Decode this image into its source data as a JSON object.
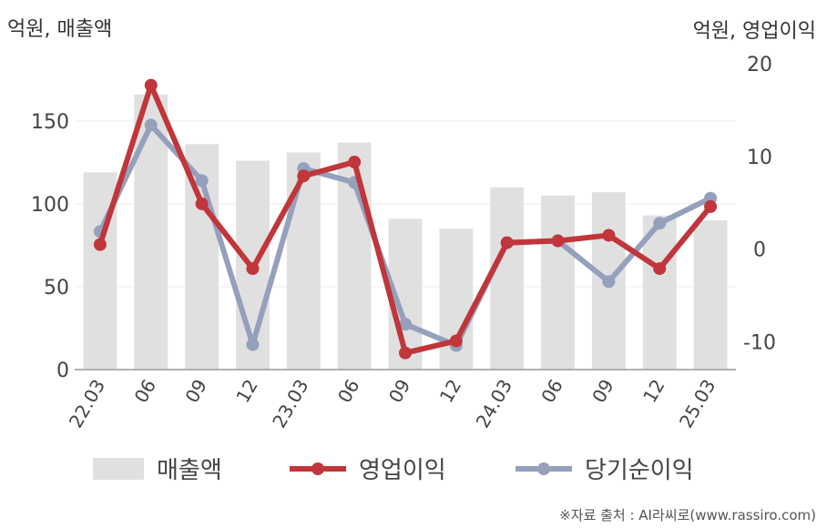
{
  "unit_left": "억원, 매출액",
  "unit_right": "억원, 영업이익",
  "source": "※자료 출처 : AI라씨로(www.rassiro.com)",
  "colors": {
    "bar": "#e0e0e0",
    "operating": "#c0363a",
    "net": "#94a0bc",
    "axis": "#999999",
    "grid": "#ececec"
  },
  "chart_data": {
    "type": "bar+line",
    "categories": [
      "22.03",
      "06",
      "09",
      "12",
      "23.03",
      "06",
      "09",
      "12",
      "24.03",
      "06",
      "09",
      "12",
      "25.03"
    ],
    "y_left": {
      "label": "억원, 매출액",
      "ylim": [
        0,
        190
      ],
      "ticks": [
        0,
        50,
        100,
        150
      ]
    },
    "y_right": {
      "label": "억원, 영업이익",
      "ylim": [
        -13,
        21
      ],
      "ticks": [
        -10,
        0,
        10,
        20
      ]
    },
    "series": [
      {
        "name": "매출액",
        "type": "bar",
        "axis": "left",
        "values": [
          119,
          166,
          136,
          126,
          131,
          137,
          91,
          85,
          110,
          105,
          107,
          93,
          90
        ]
      },
      {
        "name": "영업이익",
        "type": "line",
        "axis": "right",
        "values": [
          0.5,
          17.7,
          4.9,
          -2.1,
          7.9,
          9.4,
          -11.2,
          -9.9,
          0.7,
          0.9,
          1.5,
          -2.1,
          4.6
        ]
      },
      {
        "name": "당기순이익",
        "type": "line",
        "axis": "right",
        "values": [
          1.9,
          13.4,
          7.4,
          -10.3,
          8.7,
          7.2,
          -8.1,
          -10.4,
          0.7,
          0.9,
          -3.5,
          2.8,
          5.5
        ]
      }
    ],
    "grid": true,
    "legend_position": "bottom"
  }
}
